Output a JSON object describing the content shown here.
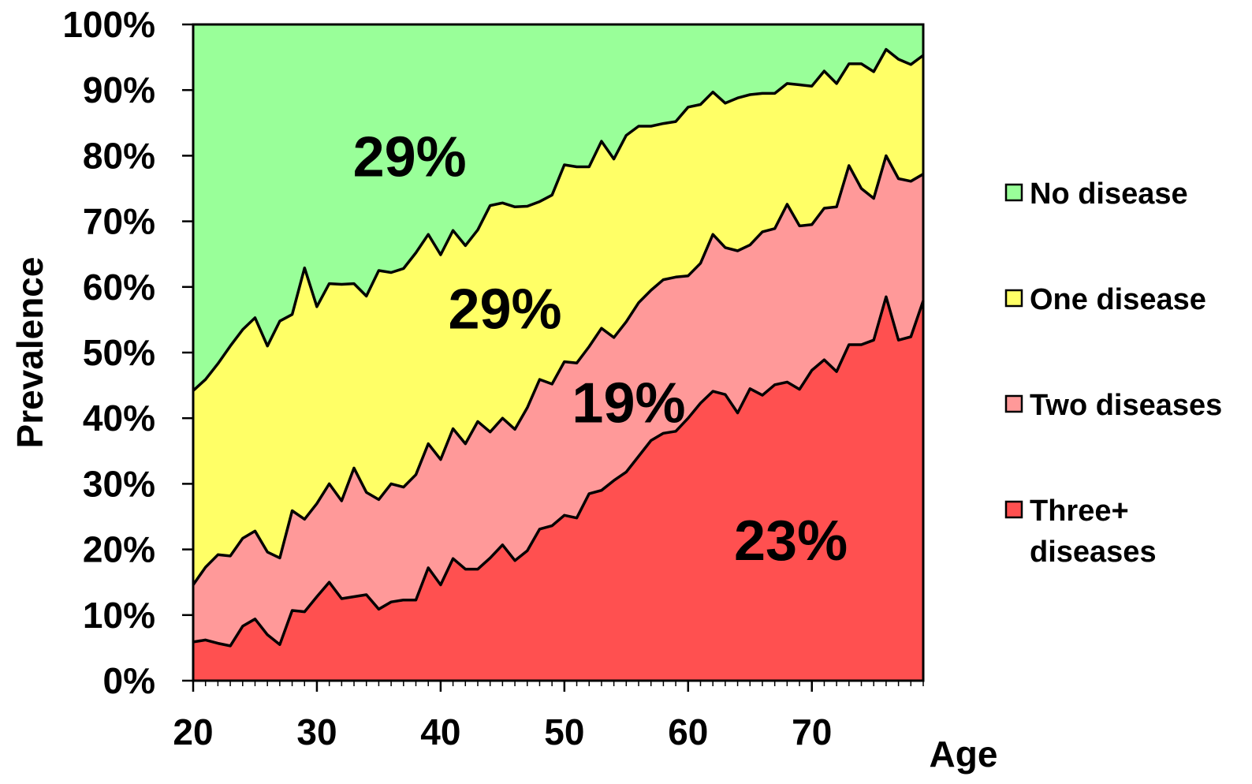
{
  "chart_data": {
    "type": "area",
    "stacked": true,
    "percent_stacked": true,
    "xlabel": "Age",
    "ylabel": "Prevalence",
    "xlim": [
      20,
      79
    ],
    "ylim": [
      0,
      100
    ],
    "x_ticks": [
      20,
      30,
      40,
      50,
      60,
      70
    ],
    "y_ticks": [
      "0%",
      "10%",
      "20%",
      "30%",
      "40%",
      "50%",
      "60%",
      "70%",
      "80%",
      "90%",
      "100%"
    ],
    "legend_position": "right",
    "x": [
      20,
      21,
      22,
      23,
      24,
      25,
      26,
      27,
      28,
      29,
      30,
      31,
      32,
      33,
      34,
      35,
      36,
      37,
      38,
      39,
      40,
      41,
      42,
      43,
      44,
      45,
      46,
      47,
      48,
      49,
      50,
      51,
      52,
      53,
      54,
      55,
      56,
      57,
      58,
      59,
      60,
      61,
      62,
      63,
      64,
      65,
      66,
      67,
      68,
      69,
      70,
      71,
      72,
      73,
      74,
      75,
      76,
      77,
      78,
      79
    ],
    "series": [
      {
        "name": "Three+ diseases",
        "color": "#ff5050",
        "cumulative_top": [
          5.9,
          6.2,
          5.7,
          5.3,
          8.3,
          9.4,
          7.0,
          5.5,
          10.7,
          10.5,
          12.8,
          15.0,
          12.5,
          12.8,
          13.1,
          10.9,
          12.0,
          12.3,
          12.3,
          17.2,
          14.6,
          18.6,
          17.0,
          17.0,
          18.7,
          20.7,
          18.3,
          19.8,
          23.1,
          23.6,
          25.2,
          24.8,
          28.5,
          29.0,
          30.5,
          31.8,
          34.2,
          36.6,
          37.7,
          38.0,
          40.0,
          42.3,
          44.1,
          43.6,
          40.8,
          44.5,
          43.5,
          45.1,
          45.5,
          44.4,
          47.3,
          48.9,
          47.1,
          51.2,
          51.2,
          51.9,
          58.5,
          51.9,
          52.4,
          57.9
        ]
      },
      {
        "name": "Two diseases",
        "color": "#ff9999",
        "cumulative_top": [
          14.6,
          17.3,
          19.2,
          19.0,
          21.7,
          22.8,
          19.6,
          18.7,
          25.9,
          24.6,
          27.0,
          30.0,
          27.4,
          32.4,
          28.7,
          27.6,
          30.0,
          29.5,
          31.4,
          36.1,
          33.7,
          38.4,
          36.1,
          39.5,
          37.9,
          40.0,
          38.3,
          41.6,
          45.9,
          45.2,
          48.6,
          48.4,
          50.9,
          53.7,
          52.3,
          54.7,
          57.6,
          59.5,
          61.1,
          61.5,
          61.7,
          63.6,
          68.0,
          66.0,
          65.5,
          66.4,
          68.4,
          68.9,
          72.6,
          69.3,
          69.5,
          72.0,
          72.2,
          78.5,
          75.0,
          73.5,
          80.0,
          76.5,
          76.1,
          77.2
        ]
      },
      {
        "name": "One disease",
        "color": "#ffff66",
        "cumulative_top": [
          44.2,
          45.9,
          48.3,
          51.0,
          53.5,
          55.3,
          51.0,
          54.8,
          55.8,
          62.9,
          57.0,
          60.5,
          60.4,
          60.5,
          58.6,
          62.5,
          62.2,
          62.8,
          65.2,
          68.0,
          64.9,
          68.6,
          66.3,
          68.7,
          72.4,
          72.8,
          72.2,
          72.3,
          73.0,
          74.0,
          78.6,
          78.3,
          78.3,
          82.2,
          79.5,
          83.1,
          84.5,
          84.5,
          84.9,
          85.2,
          87.4,
          87.8,
          89.7,
          88.0,
          88.8,
          89.3,
          89.5,
          89.5,
          91.0,
          90.8,
          90.6,
          92.9,
          91.0,
          94.0,
          94.0,
          92.8,
          96.2,
          94.7,
          93.9,
          95.3
        ]
      },
      {
        "name": "No disease",
        "color": "#99ff99",
        "cumulative_top": [
          100,
          100,
          100,
          100,
          100,
          100,
          100,
          100,
          100,
          100,
          100,
          100,
          100,
          100,
          100,
          100,
          100,
          100,
          100,
          100,
          100,
          100,
          100,
          100,
          100,
          100,
          100,
          100,
          100,
          100,
          100,
          100,
          100,
          100,
          100,
          100,
          100,
          100,
          100,
          100,
          100,
          100,
          100,
          100,
          100,
          100,
          100,
          100,
          100,
          100,
          100,
          100,
          100,
          100,
          100,
          100,
          100,
          100,
          100,
          100
        ]
      }
    ],
    "legend_items": [
      {
        "lines": [
          "No disease"
        ],
        "color": "#99ff99"
      },
      {
        "lines": [
          "One disease"
        ],
        "color": "#ffff66"
      },
      {
        "lines": [
          "Two diseases"
        ],
        "color": "#ff9999"
      },
      {
        "lines": [
          "Three+",
          "diseases"
        ],
        "color": "#ff5050"
      }
    ],
    "annotations": [
      {
        "text": "29%",
        "x": 37.5,
        "y": 80
      },
      {
        "text": "29%",
        "x": 45.2,
        "y": 56.8
      },
      {
        "text": "19%",
        "x": 55.2,
        "y": 42.5
      },
      {
        "text": "23%",
        "x": 68.3,
        "y": 21.5
      }
    ]
  }
}
